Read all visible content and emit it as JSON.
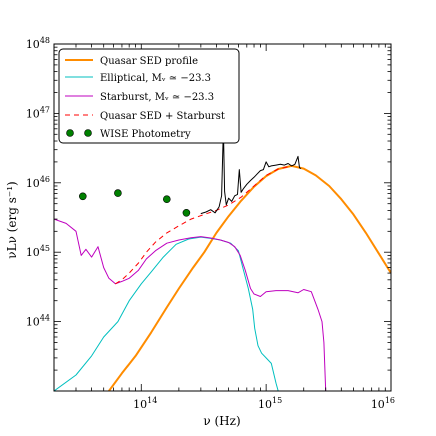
{
  "chart_data": {
    "type": "line",
    "title": "",
    "xlabel": "ν (Hz)",
    "ylabel": "νLν (erg s⁻¹)",
    "x_scale": "log",
    "y_scale": "log",
    "xlim": [
      20000000000000.0,
      1e+16
    ],
    "ylim": [
      1e+43,
      1e+48
    ],
    "x_ticks": [
      {
        "value": 100000000000000.0,
        "base": "10",
        "exp": "14"
      },
      {
        "value": 1000000000000000.0,
        "base": "10",
        "exp": "15"
      },
      {
        "value": 1e+16,
        "base": "10",
        "exp": "16"
      }
    ],
    "y_ticks": [
      {
        "value": 1e+44,
        "base": "10",
        "exp": "44"
      },
      {
        "value": 1e+45,
        "base": "10",
        "exp": "45"
      },
      {
        "value": 1e+46,
        "base": "10",
        "exp": "46"
      },
      {
        "value": 1e+47,
        "base": "10",
        "exp": "47"
      },
      {
        "value": 1e+48,
        "base": "10",
        "exp": "48"
      }
    ],
    "legend": {
      "position": "top-left",
      "entries": [
        {
          "label": "Quasar SED profile",
          "color": "#ff8c00",
          "style": "solid"
        },
        {
          "label": "Elliptical, Mᵥ ≃ −23.3",
          "color": "#00bfbf",
          "style": "solid"
        },
        {
          "label": "Starburst, Mᵥ ≃ −23.3",
          "color": "#bf00bf",
          "style": "solid"
        },
        {
          "label": "Quasar SED + Starburst",
          "color": "#ff0000",
          "style": "dashed"
        },
        {
          "label": "WISE Photometry",
          "color": "#008000",
          "style": "marker"
        }
      ]
    },
    "series": [
      {
        "color": "#ff8c00",
        "style": "solid",
        "points": [
          [
            55000000000000.0,
            1e+43
          ],
          [
            70000000000000.0,
            1.8e+43
          ],
          [
            90000000000000.0,
            3.2e+43
          ],
          [
            120000000000000.0,
            7e+43
          ],
          [
            160000000000000.0,
            1.6e+44
          ],
          [
            200000000000000.0,
            3e+44
          ],
          [
            260000000000000.0,
            6e+44
          ],
          [
            320000000000000.0,
            1e+45
          ],
          [
            400000000000000.0,
            1.9e+45
          ],
          [
            500000000000000.0,
            3.3e+45
          ],
          [
            630000000000000.0,
            5.5e+45
          ],
          [
            800000000000000.0,
            8.8e+45
          ],
          [
            1000000000000000.0,
            1.25e+46
          ],
          [
            1250000000000000.0,
            1.58e+46
          ],
          [
            1600000000000000.0,
            1.75e+46
          ],
          [
            2000000000000000.0,
            1.6e+46
          ],
          [
            2500000000000000.0,
            1.28e+46
          ],
          [
            3200000000000000.0,
            9e+45
          ],
          [
            4000000000000000.0,
            5.8e+45
          ],
          [
            5000000000000000.0,
            3.5e+45
          ],
          [
            6300000000000000.0,
            1.9e+45
          ],
          [
            8000000000000000.0,
            9.5e+44
          ],
          [
            1e+16,
            5e+44
          ]
        ]
      },
      {
        "color": "#00bfbf",
        "style": "solid",
        "points": [
          [
            20000000000000.0,
            1e+43
          ],
          [
            30000000000000.0,
            1.7e+43
          ],
          [
            40000000000000.0,
            3.2e+43
          ],
          [
            50000000000000.0,
            6e+43
          ],
          [
            65000000000000.0,
            1e+44
          ],
          [
            80000000000000.0,
            2e+44
          ],
          [
            100000000000000.0,
            3.5e+44
          ],
          [
            120000000000000.0,
            5.2e+44
          ],
          [
            150000000000000.0,
            8.5e+44
          ],
          [
            190000000000000.0,
            1.3e+45
          ],
          [
            240000000000000.0,
            1.55e+45
          ],
          [
            300000000000000.0,
            1.65e+45
          ],
          [
            360000000000000.0,
            1.58e+45
          ],
          [
            430000000000000.0,
            1.5e+45
          ],
          [
            520000000000000.0,
            1.35e+45
          ],
          [
            600000000000000.0,
            1.05e+45
          ],
          [
            650000000000000.0,
            6e+44
          ],
          [
            720000000000000.0,
            3e+44
          ],
          [
            780000000000000.0,
            1.5e+44
          ],
          [
            810000000000000.0,
            8e+43
          ],
          [
            860000000000000.0,
            4.5e+43
          ],
          [
            920000000000000.0,
            3.5e+43
          ],
          [
            1000000000000000.0,
            3e+43
          ],
          [
            1100000000000000.0,
            2.5e+43
          ],
          [
            1200000000000000.0,
            1.3e+43
          ],
          [
            1250000000000000.0,
            1e+43
          ]
        ]
      },
      {
        "color": "#bf00bf",
        "style": "solid",
        "points": [
          [
            20000000000000.0,
            3e+45
          ],
          [
            25000000000000.0,
            2.6e+45
          ],
          [
            30000000000000.0,
            2e+45
          ],
          [
            33000000000000.0,
            9e+44
          ],
          [
            36000000000000.0,
            1.1e+45
          ],
          [
            40000000000000.0,
            8.5e+44
          ],
          [
            45000000000000.0,
            1.2e+45
          ],
          [
            50000000000000.0,
            6e+44
          ],
          [
            55000000000000.0,
            4.2e+44
          ],
          [
            62000000000000.0,
            3.5e+44
          ],
          [
            70000000000000.0,
            3.8e+44
          ],
          [
            80000000000000.0,
            4.2e+44
          ],
          [
            95000000000000.0,
            5.5e+44
          ],
          [
            110000000000000.0,
            8e+44
          ],
          [
            130000000000000.0,
            1.05e+45
          ],
          [
            160000000000000.0,
            1.35e+45
          ],
          [
            200000000000000.0,
            1.5e+45
          ],
          [
            250000000000000.0,
            1.62e+45
          ],
          [
            300000000000000.0,
            1.68e+45
          ],
          [
            360000000000000.0,
            1.6e+45
          ],
          [
            430000000000000.0,
            1.5e+45
          ],
          [
            500000000000000.0,
            1.38e+45
          ],
          [
            560000000000000.0,
            1.2e+45
          ],
          [
            620000000000000.0,
            9e+44
          ],
          [
            680000000000000.0,
            5.5e+44
          ],
          [
            750000000000000.0,
            3e+44
          ],
          [
            800000000000000.0,
            2.5e+44
          ],
          [
            900000000000000.0,
            2.3e+44
          ],
          [
            1000000000000000.0,
            2.7e+44
          ],
          [
            1200000000000000.0,
            2.8e+44
          ],
          [
            1500000000000000.0,
            2.8e+44
          ],
          [
            1800000000000000.0,
            2.6e+44
          ],
          [
            2000000000000000.0,
            2.9e+44
          ],
          [
            2300000000000000.0,
            2.7e+44
          ],
          [
            2600000000000000.0,
            1.5e+44
          ],
          [
            2800000000000000.0,
            1e+44
          ],
          [
            2900000000000000.0,
            5e+43
          ],
          [
            3000000000000000.0,
            1e+43
          ]
        ]
      },
      {
        "color": "#ff0000",
        "style": "dashed",
        "points": [
          [
            62000000000000.0,
            3.5e+44
          ],
          [
            70000000000000.0,
            4e+44
          ],
          [
            80000000000000.0,
            5e+44
          ],
          [
            95000000000000.0,
            7e+44
          ],
          [
            110000000000000.0,
            1e+45
          ],
          [
            130000000000000.0,
            1.4e+45
          ],
          [
            160000000000000.0,
            1.9e+45
          ],
          [
            200000000000000.0,
            2.4e+45
          ],
          [
            250000000000000.0,
            3e+45
          ],
          [
            320000000000000.0,
            3.5e+45
          ],
          [
            400000000000000.0,
            4e+45
          ],
          [
            500000000000000.0,
            4.8e+45
          ],
          [
            630000000000000.0,
            6.2e+45
          ],
          [
            800000000000000.0,
            9e+45
          ],
          [
            1000000000000000.0,
            1.28e+46
          ],
          [
            1250000000000000.0,
            1.58e+46
          ],
          [
            1600000000000000.0,
            1.75e+46
          ]
        ]
      },
      {
        "color": "#000000",
        "style": "solid",
        "points": [
          [
            300000000000000.0,
            3.6e+45
          ],
          [
            330000000000000.0,
            3.8e+45
          ],
          [
            360000000000000.0,
            4.1e+45
          ],
          [
            390000000000000.0,
            3.7e+45
          ],
          [
            420000000000000.0,
            4.5e+45
          ],
          [
            440000000000000.0,
            6.5e+45
          ],
          [
            455000000000000.0,
            6.1e+46
          ],
          [
            465000000000000.0,
            7.5e+45
          ],
          [
            480000000000000.0,
            4.8e+45
          ],
          [
            500000000000000.0,
            6e+45
          ],
          [
            530000000000000.0,
            5.4e+45
          ],
          [
            560000000000000.0,
            6.5e+45
          ],
          [
            590000000000000.0,
            6.8e+45
          ],
          [
            610000000000000.0,
            1.55e+46
          ],
          [
            630000000000000.0,
            7.3e+45
          ],
          [
            660000000000000.0,
            8.3e+45
          ],
          [
            700000000000000.0,
            9.5e+45
          ],
          [
            750000000000000.0,
            1.08e+46
          ],
          [
            800000000000000.0,
            1.2e+46
          ],
          [
            850000000000000.0,
            1.35e+46
          ],
          [
            900000000000000.0,
            1.5e+46
          ],
          [
            950000000000000.0,
            1.55e+46
          ],
          [
            1000000000000000.0,
            2e+46
          ],
          [
            1050000000000000.0,
            1.7e+46
          ],
          [
            1100000000000000.0,
            1.75e+46
          ],
          [
            1200000000000000.0,
            1.8e+46
          ],
          [
            1300000000000000.0,
            1.85e+46
          ],
          [
            1400000000000000.0,
            1.8e+46
          ],
          [
            1500000000000000.0,
            1.9e+46
          ],
          [
            1600000000000000.0,
            1.75e+46
          ],
          [
            1700000000000000.0,
            1.85e+46
          ],
          [
            1800000000000000.0,
            2.4e+46
          ],
          [
            1850000000000000.0,
            1.65e+46
          ],
          [
            1900000000000000.0,
            1.6e+46
          ]
        ]
      }
    ],
    "wise_points": [
      [
        34000000000000.0,
        6.4e+45
      ],
      [
        65000000000000.0,
        7.1e+45
      ],
      [
        160000000000000.0,
        5.8e+45
      ],
      [
        230000000000000.0,
        3.7e+45
      ]
    ]
  }
}
